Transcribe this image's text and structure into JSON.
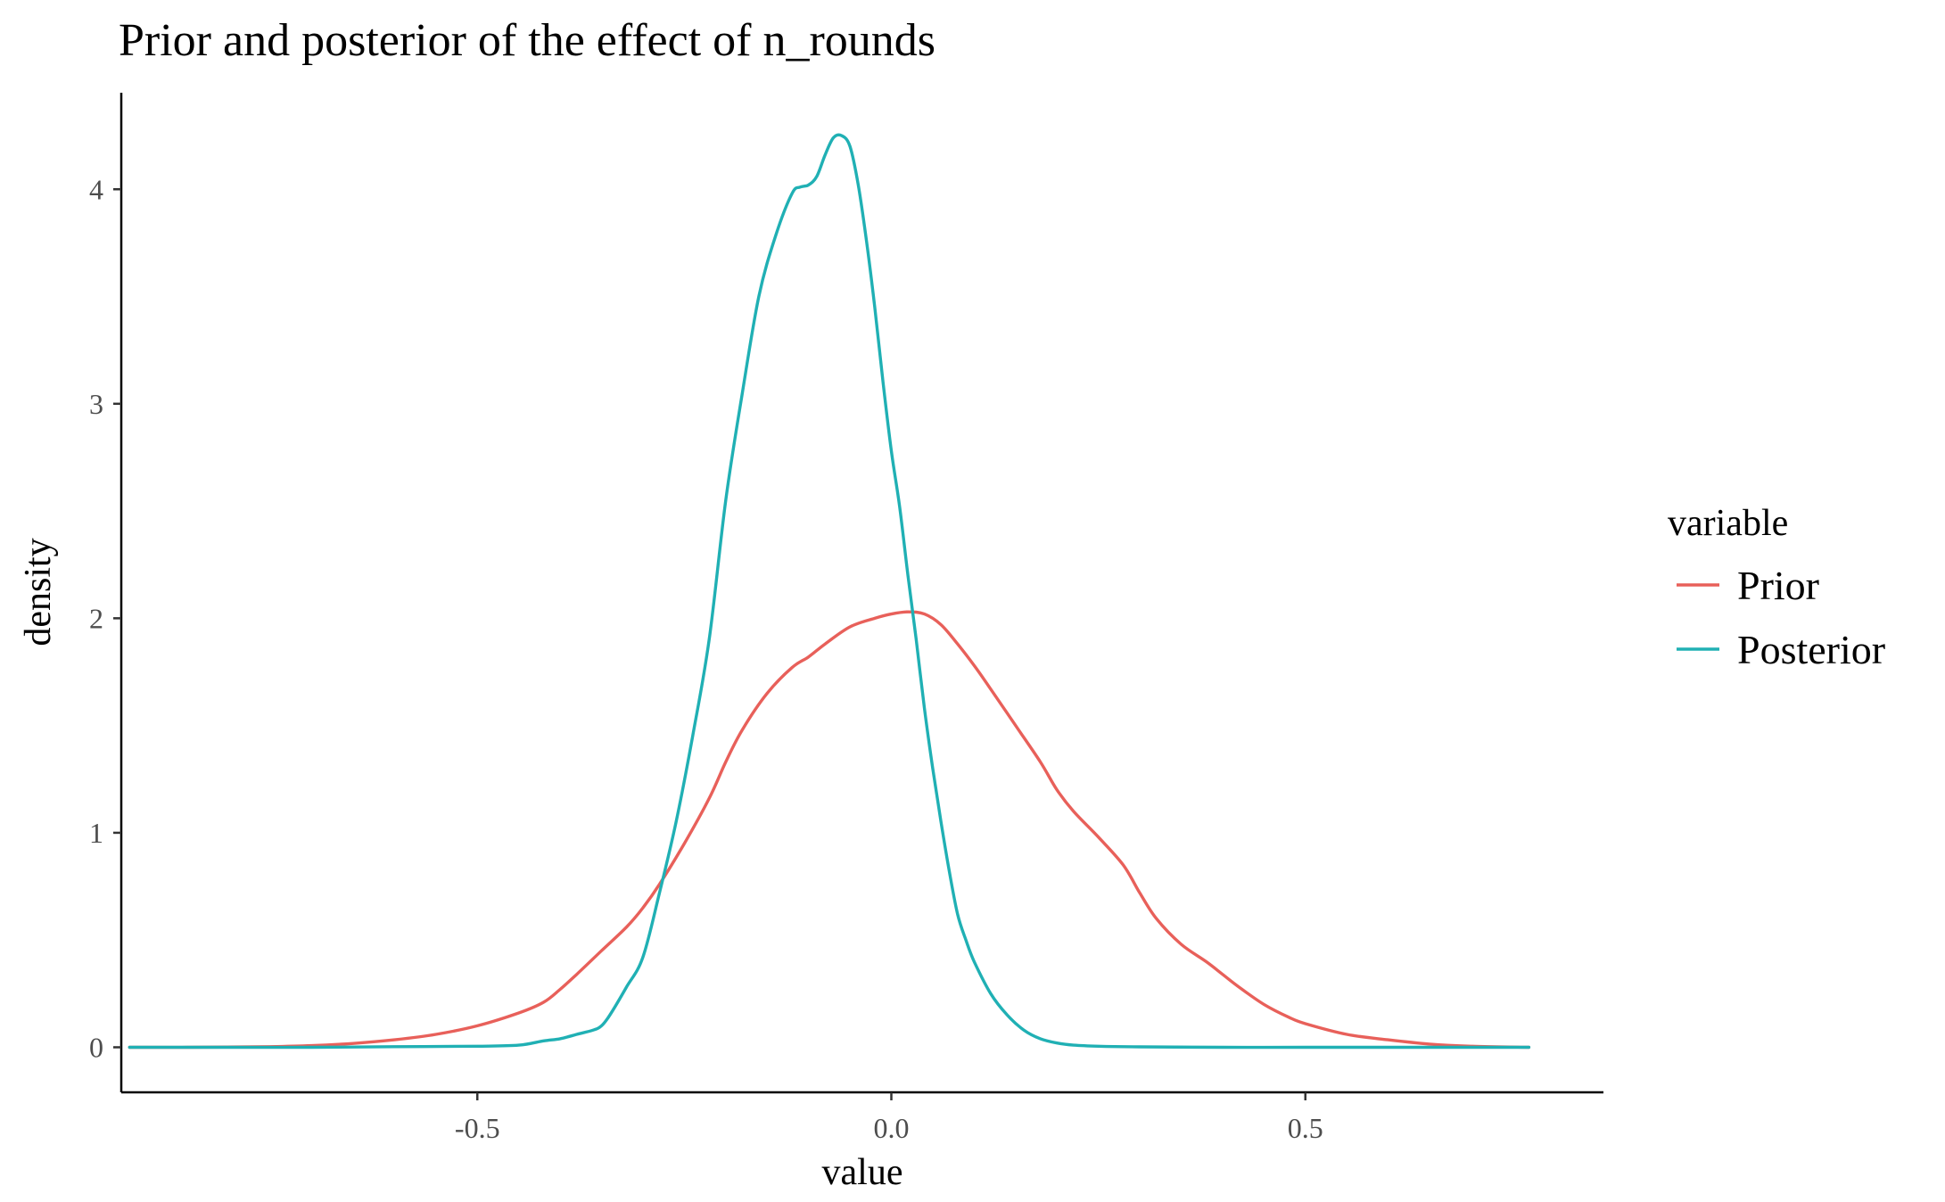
{
  "chart_data": {
    "type": "line",
    "title": "Prior and posterior of the effect of n_rounds",
    "xlabel": "value",
    "ylabel": "density",
    "xlim": [
      -0.93,
      0.86
    ],
    "ylim": [
      -0.21,
      4.45
    ],
    "x_ticks": [
      {
        "value": -0.5,
        "label": "-0.5"
      },
      {
        "value": 0.0,
        "label": "0.0"
      },
      {
        "value": 0.5,
        "label": "0.5"
      }
    ],
    "y_ticks": [
      {
        "value": 0,
        "label": "0"
      },
      {
        "value": 1,
        "label": "1"
      },
      {
        "value": 2,
        "label": "2"
      },
      {
        "value": 3,
        "label": "3"
      },
      {
        "value": 4,
        "label": "4"
      }
    ],
    "grid": false,
    "legend": {
      "title": "variable",
      "position": "right",
      "entries": [
        {
          "label": "Prior",
          "color": "#e8605a"
        },
        {
          "label": "Posterior",
          "color": "#20b0b4"
        }
      ]
    },
    "series": [
      {
        "name": "Prior",
        "color": "#e8605a",
        "x": [
          -0.92,
          -0.85,
          -0.75,
          -0.7,
          -0.65,
          -0.6,
          -0.55,
          -0.5,
          -0.45,
          -0.42,
          -0.4,
          -0.38,
          -0.35,
          -0.32,
          -0.3,
          -0.28,
          -0.25,
          -0.22,
          -0.2,
          -0.18,
          -0.15,
          -0.12,
          -0.1,
          -0.08,
          -0.05,
          -0.02,
          0.0,
          0.02,
          0.04,
          0.06,
          0.08,
          0.1,
          0.12,
          0.15,
          0.18,
          0.2,
          0.22,
          0.25,
          0.28,
          0.3,
          0.32,
          0.35,
          0.38,
          0.4,
          0.42,
          0.45,
          0.48,
          0.5,
          0.55,
          0.6,
          0.65,
          0.7,
          0.77
        ],
        "y": [
          0,
          0,
          0.003,
          0.008,
          0.018,
          0.035,
          0.06,
          0.1,
          0.16,
          0.21,
          0.27,
          0.34,
          0.45,
          0.56,
          0.65,
          0.76,
          0.95,
          1.16,
          1.33,
          1.48,
          1.65,
          1.77,
          1.82,
          1.88,
          1.96,
          2.0,
          2.02,
          2.03,
          2.02,
          1.97,
          1.88,
          1.78,
          1.67,
          1.5,
          1.33,
          1.2,
          1.1,
          0.98,
          0.85,
          0.72,
          0.6,
          0.48,
          0.4,
          0.34,
          0.28,
          0.2,
          0.14,
          0.11,
          0.06,
          0.035,
          0.015,
          0.005,
          0
        ]
      },
      {
        "name": "Posterior",
        "color": "#20b0b4",
        "x": [
          -0.92,
          -0.8,
          -0.7,
          -0.6,
          -0.5,
          -0.45,
          -0.42,
          -0.4,
          -0.38,
          -0.36,
          -0.35,
          -0.34,
          -0.32,
          -0.3,
          -0.28,
          -0.26,
          -0.24,
          -0.22,
          -0.2,
          -0.18,
          -0.16,
          -0.14,
          -0.12,
          -0.11,
          -0.1,
          -0.09,
          -0.08,
          -0.07,
          -0.06,
          -0.05,
          -0.04,
          -0.03,
          -0.02,
          -0.01,
          0.0,
          0.01,
          0.02,
          0.03,
          0.04,
          0.05,
          0.06,
          0.07,
          0.08,
          0.09,
          0.1,
          0.12,
          0.14,
          0.16,
          0.18,
          0.2,
          0.22,
          0.25,
          0.3,
          0.4,
          0.5,
          0.6,
          0.77
        ],
        "y": [
          0,
          0,
          0,
          0.003,
          0.005,
          0.01,
          0.03,
          0.04,
          0.06,
          0.08,
          0.1,
          0.15,
          0.28,
          0.42,
          0.72,
          1.05,
          1.45,
          1.9,
          2.55,
          3.05,
          3.5,
          3.78,
          3.98,
          4.01,
          4.02,
          4.06,
          4.16,
          4.24,
          4.25,
          4.2,
          4.02,
          3.76,
          3.45,
          3.1,
          2.78,
          2.52,
          2.2,
          1.9,
          1.58,
          1.3,
          1.05,
          0.82,
          0.62,
          0.5,
          0.4,
          0.25,
          0.15,
          0.08,
          0.04,
          0.02,
          0.01,
          0.005,
          0.002,
          0,
          0,
          0,
          0
        ]
      }
    ]
  }
}
